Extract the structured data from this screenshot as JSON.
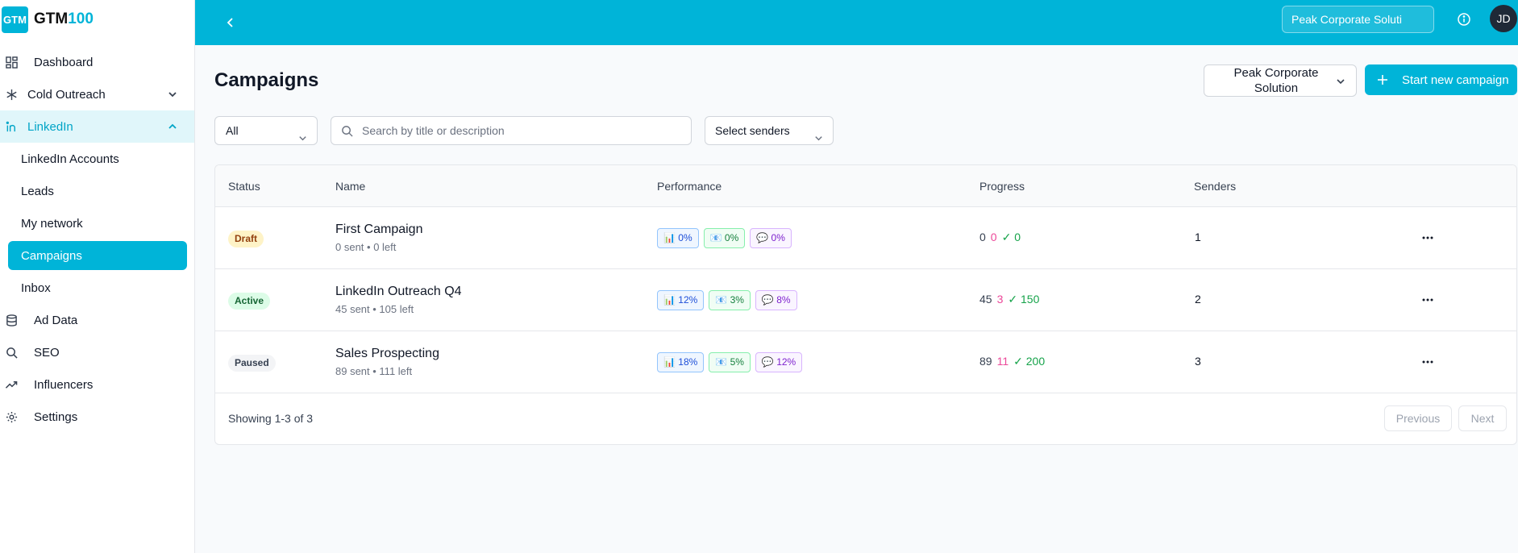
{
  "brand": {
    "logo_text": "GTM",
    "name_main": "GTM",
    "name_accent": "100",
    "accent_color": "#00b4d8"
  },
  "sidebar": {
    "items": [
      {
        "label": "Dashboard",
        "icon": "dashboard-icon"
      },
      {
        "label": "Cold Outreach",
        "icon": "snowflake-icon"
      },
      {
        "label": "LinkedIn",
        "icon": "linkedin-icon"
      },
      {
        "label": "LinkedIn Accounts"
      },
      {
        "label": "Leads"
      },
      {
        "label": "My network"
      },
      {
        "label": "Campaigns"
      },
      {
        "label": "Inbox"
      },
      {
        "label": "Ad Data",
        "icon": "database-icon"
      },
      {
        "label": "SEO",
        "icon": "search-icon"
      },
      {
        "label": "Influencers",
        "icon": "trending-icon"
      },
      {
        "label": "Settings",
        "icon": "gear-icon"
      }
    ]
  },
  "topbar": {
    "org_value": "Peak Corporate Soluti",
    "avatar_initials": "JD"
  },
  "main": {
    "title": "Campaigns",
    "org_select": "Peak Corporate Solution",
    "new_button": "Start new campaign",
    "filter_status": "All",
    "search_placeholder": "Search by title or description",
    "senders_select": "Select senders"
  },
  "table": {
    "headers": {
      "status": "Status",
      "name": "Name",
      "performance": "Performance",
      "progress": "Progress",
      "senders": "Senders"
    },
    "rows": [
      {
        "status": "Draft",
        "name": "First Campaign",
        "sub": "0 sent • 0 left",
        "perf": [
          "📊 0%",
          "📧 0%",
          "💬 0%"
        ],
        "progress": [
          "0",
          "0",
          "✓ 0"
        ],
        "senders": "1"
      },
      {
        "status": "Active",
        "name": "LinkedIn Outreach Q4",
        "sub": "45 sent • 105 left",
        "perf": [
          "📊 12%",
          "📧 3%",
          "💬 8%"
        ],
        "progress": [
          "45",
          "3",
          "✓ 150"
        ],
        "senders": "2"
      },
      {
        "status": "Paused",
        "name": "Sales Prospecting",
        "sub": "89 sent • 111 left",
        "perf": [
          "📊 18%",
          "📧 5%",
          "💬 12%"
        ],
        "progress": [
          "89",
          "11",
          "✓ 200"
        ],
        "senders": "3"
      }
    ],
    "showing": "Showing 1-3 of 3",
    "prev": "Previous",
    "next": "Next"
  }
}
